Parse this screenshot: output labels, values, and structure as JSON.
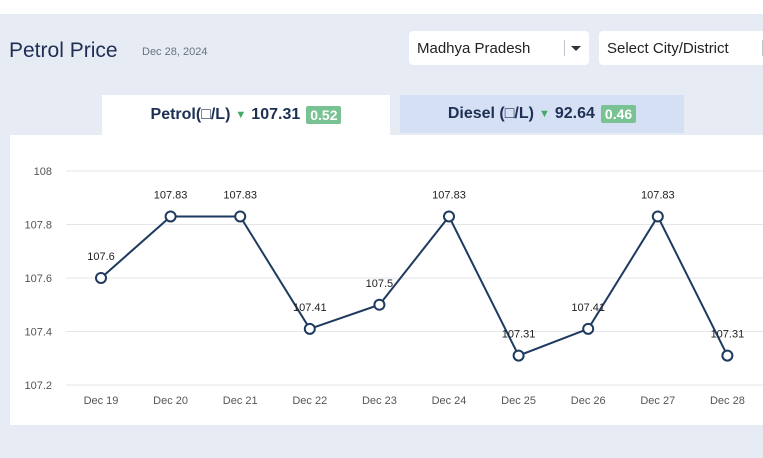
{
  "header": {
    "title": "Petrol Price",
    "date": "Dec 28, 2024",
    "state_select": "Madhya Pradesh",
    "city_select": "Select City/District"
  },
  "tabs": [
    {
      "fuel": "Petrol(□/L)",
      "price": "107.31",
      "change": "0.52",
      "active": true
    },
    {
      "fuel": "Diesel (□/L)",
      "price": "92.64",
      "change": "0.46",
      "active": false
    }
  ],
  "colors": {
    "line": "#1e3a5f",
    "down_arrow": "#43a86a",
    "badge": "#79c293"
  },
  "icons": {
    "down": "down-triangle-icon",
    "caret": "chevron-down-icon"
  },
  "chart_data": {
    "type": "line",
    "categories": [
      "Dec 19",
      "Dec 20",
      "Dec 21",
      "Dec 22",
      "Dec 23",
      "Dec 24",
      "Dec 25",
      "Dec 26",
      "Dec 27",
      "Dec 28"
    ],
    "values": [
      107.6,
      107.83,
      107.83,
      107.41,
      107.5,
      107.83,
      107.31,
      107.41,
      107.83,
      107.31
    ],
    "data_labels": [
      "107.6",
      "107.83",
      "107.83",
      "107.41",
      "107.5",
      "107.83",
      "107.31",
      "107.41",
      "107.83",
      "107.31"
    ],
    "ylim": [
      107.2,
      108
    ],
    "yticks": [
      107.2,
      107.4,
      107.6,
      107.8,
      108
    ],
    "ytick_labels": [
      "107.2",
      "107.4",
      "107.6",
      "107.8",
      "108"
    ],
    "grid": true
  }
}
